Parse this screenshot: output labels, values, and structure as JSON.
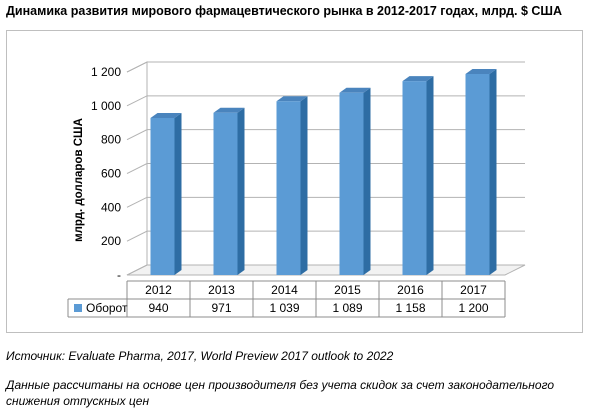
{
  "title": "Динамика развития мирового фармацевтического рынка в 2012-2017 годах, млрд. $ США",
  "chart_data": {
    "type": "bar",
    "categories": [
      "2012",
      "2013",
      "2014",
      "2015",
      "2016",
      "2017"
    ],
    "series": [
      {
        "name": "Оборот",
        "values": [
          940,
          971,
          1039,
          1089,
          1158,
          1200
        ],
        "value_labels": [
          "940",
          "971",
          "1 039",
          "1 089",
          "1 158",
          "1 200"
        ]
      }
    ],
    "ylabel": "млрд. долларов США",
    "ylim": [
      0,
      1200
    ],
    "yticks": [
      0,
      200,
      400,
      600,
      800,
      1000,
      1200
    ],
    "ytick_labels": [
      "-",
      "200",
      "400",
      "600",
      "800",
      "1 000",
      "1 200"
    ],
    "grid": true,
    "data_table": true,
    "colors": {
      "bar": "#5b9bd5",
      "bar_side": "#2e6da4",
      "bar_top": "#4a84bd",
      "grid": "#b3b3b3",
      "wall": "#ffffff"
    }
  },
  "source": "Источник: Evaluate Pharma, 2017, World Preview 2017 outlook to 2022",
  "footnote_line1": "Данные рассчитаны на основе цен производителя без учета скидок за счет законодательного",
  "footnote_line2": "снижения отпускных цен"
}
